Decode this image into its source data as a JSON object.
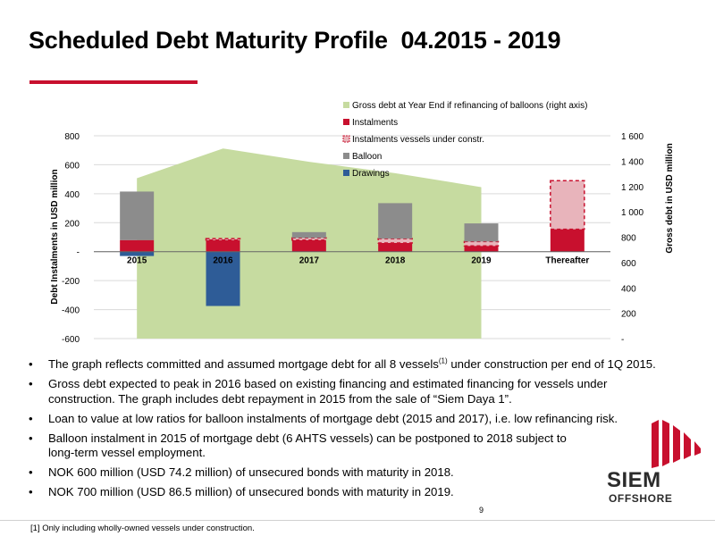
{
  "slide": {
    "title": "Scheduled Debt Maturity Profile  04.2015 - 2019",
    "page_number": "9",
    "footnote": "[1]  Only including wholly-owned vessels under construction."
  },
  "bullets": [
    {
      "text": "The graph reflects committed and assumed mortgage debt for all 8 vessels",
      "sup": "(1)",
      "text_after": " under construction per end of 1Q 2015."
    },
    {
      "text": "Gross debt expected to peak in 2016 based on existing financing and estimated financing for vessels under construction. The graph includes debt repayment in 2015 from the sale of “Siem Daya 1”."
    },
    {
      "text": "Loan to value at low ratios for balloon instalments of mortgage debt (2015 and 2017), i.e. low refinancing risk."
    },
    {
      "text": "Balloon instalment in 2015 of mortgage debt (6 AHTS vessels) can be postponed to 2018 subject to long-term vessel employment."
    },
    {
      "text": "NOK 600 million (USD 74.2 million) of unsecured bonds with maturity in 2018."
    },
    {
      "text": "NOK 700 million (USD 86.5 million) of unsecured bonds with maturity in 2019."
    }
  ],
  "logo": {
    "line1": "SIEM",
    "line2": "OFFSHORE"
  },
  "chart_data": {
    "type": "bar",
    "categories": [
      "2015",
      "2016",
      "2017",
      "2018",
      "2019",
      "Thereafter"
    ],
    "ylabel": "Debt Instalments in USD million",
    "y2label": "Gross debt in USD million",
    "ylim": [
      -600,
      800
    ],
    "y2lim": [
      0,
      1600
    ],
    "yticks": [
      -600,
      -400,
      -200,
      0,
      200,
      400,
      600,
      800
    ],
    "ytick_labels": [
      "-600",
      "-400",
      "-200",
      "-",
      "200",
      "400",
      "600",
      "800"
    ],
    "y2ticks": [
      0,
      200,
      400,
      600,
      800,
      1000,
      1200,
      1400,
      1600
    ],
    "y2tick_labels": [
      "-",
      "200",
      "400",
      "600",
      "800",
      "1 000",
      "1 200",
      "1 400",
      "1 600"
    ],
    "grid": true,
    "legend_position": "top-right",
    "stacked": true,
    "series": [
      {
        "name": "Gross debt at Year End if refinancing of balloons (right axis)",
        "kind": "area",
        "axis": "right",
        "color": "#c6dba0",
        "values": [
          1265,
          1500,
          1395,
          1305,
          1195,
          null
        ]
      },
      {
        "name": "Instalments",
        "kind": "bar",
        "color": "#c8102e",
        "values": [
          80,
          80,
          80,
          60,
          40,
          155
        ]
      },
      {
        "name": "Instalments vessels under constr.",
        "kind": "bar",
        "color": "#e8b4bb",
        "stroke": "#c8102e",
        "dashed": true,
        "values": [
          0,
          10,
          15,
          30,
          30,
          335
        ]
      },
      {
        "name": "Balloon",
        "kind": "bar",
        "color": "#8c8c8c",
        "values": [
          335,
          0,
          40,
          245,
          125,
          0
        ]
      },
      {
        "name": "Drawings",
        "kind": "bar",
        "color": "#2e5c97",
        "values": [
          -30,
          -375,
          0,
          0,
          0,
          0
        ]
      }
    ]
  }
}
